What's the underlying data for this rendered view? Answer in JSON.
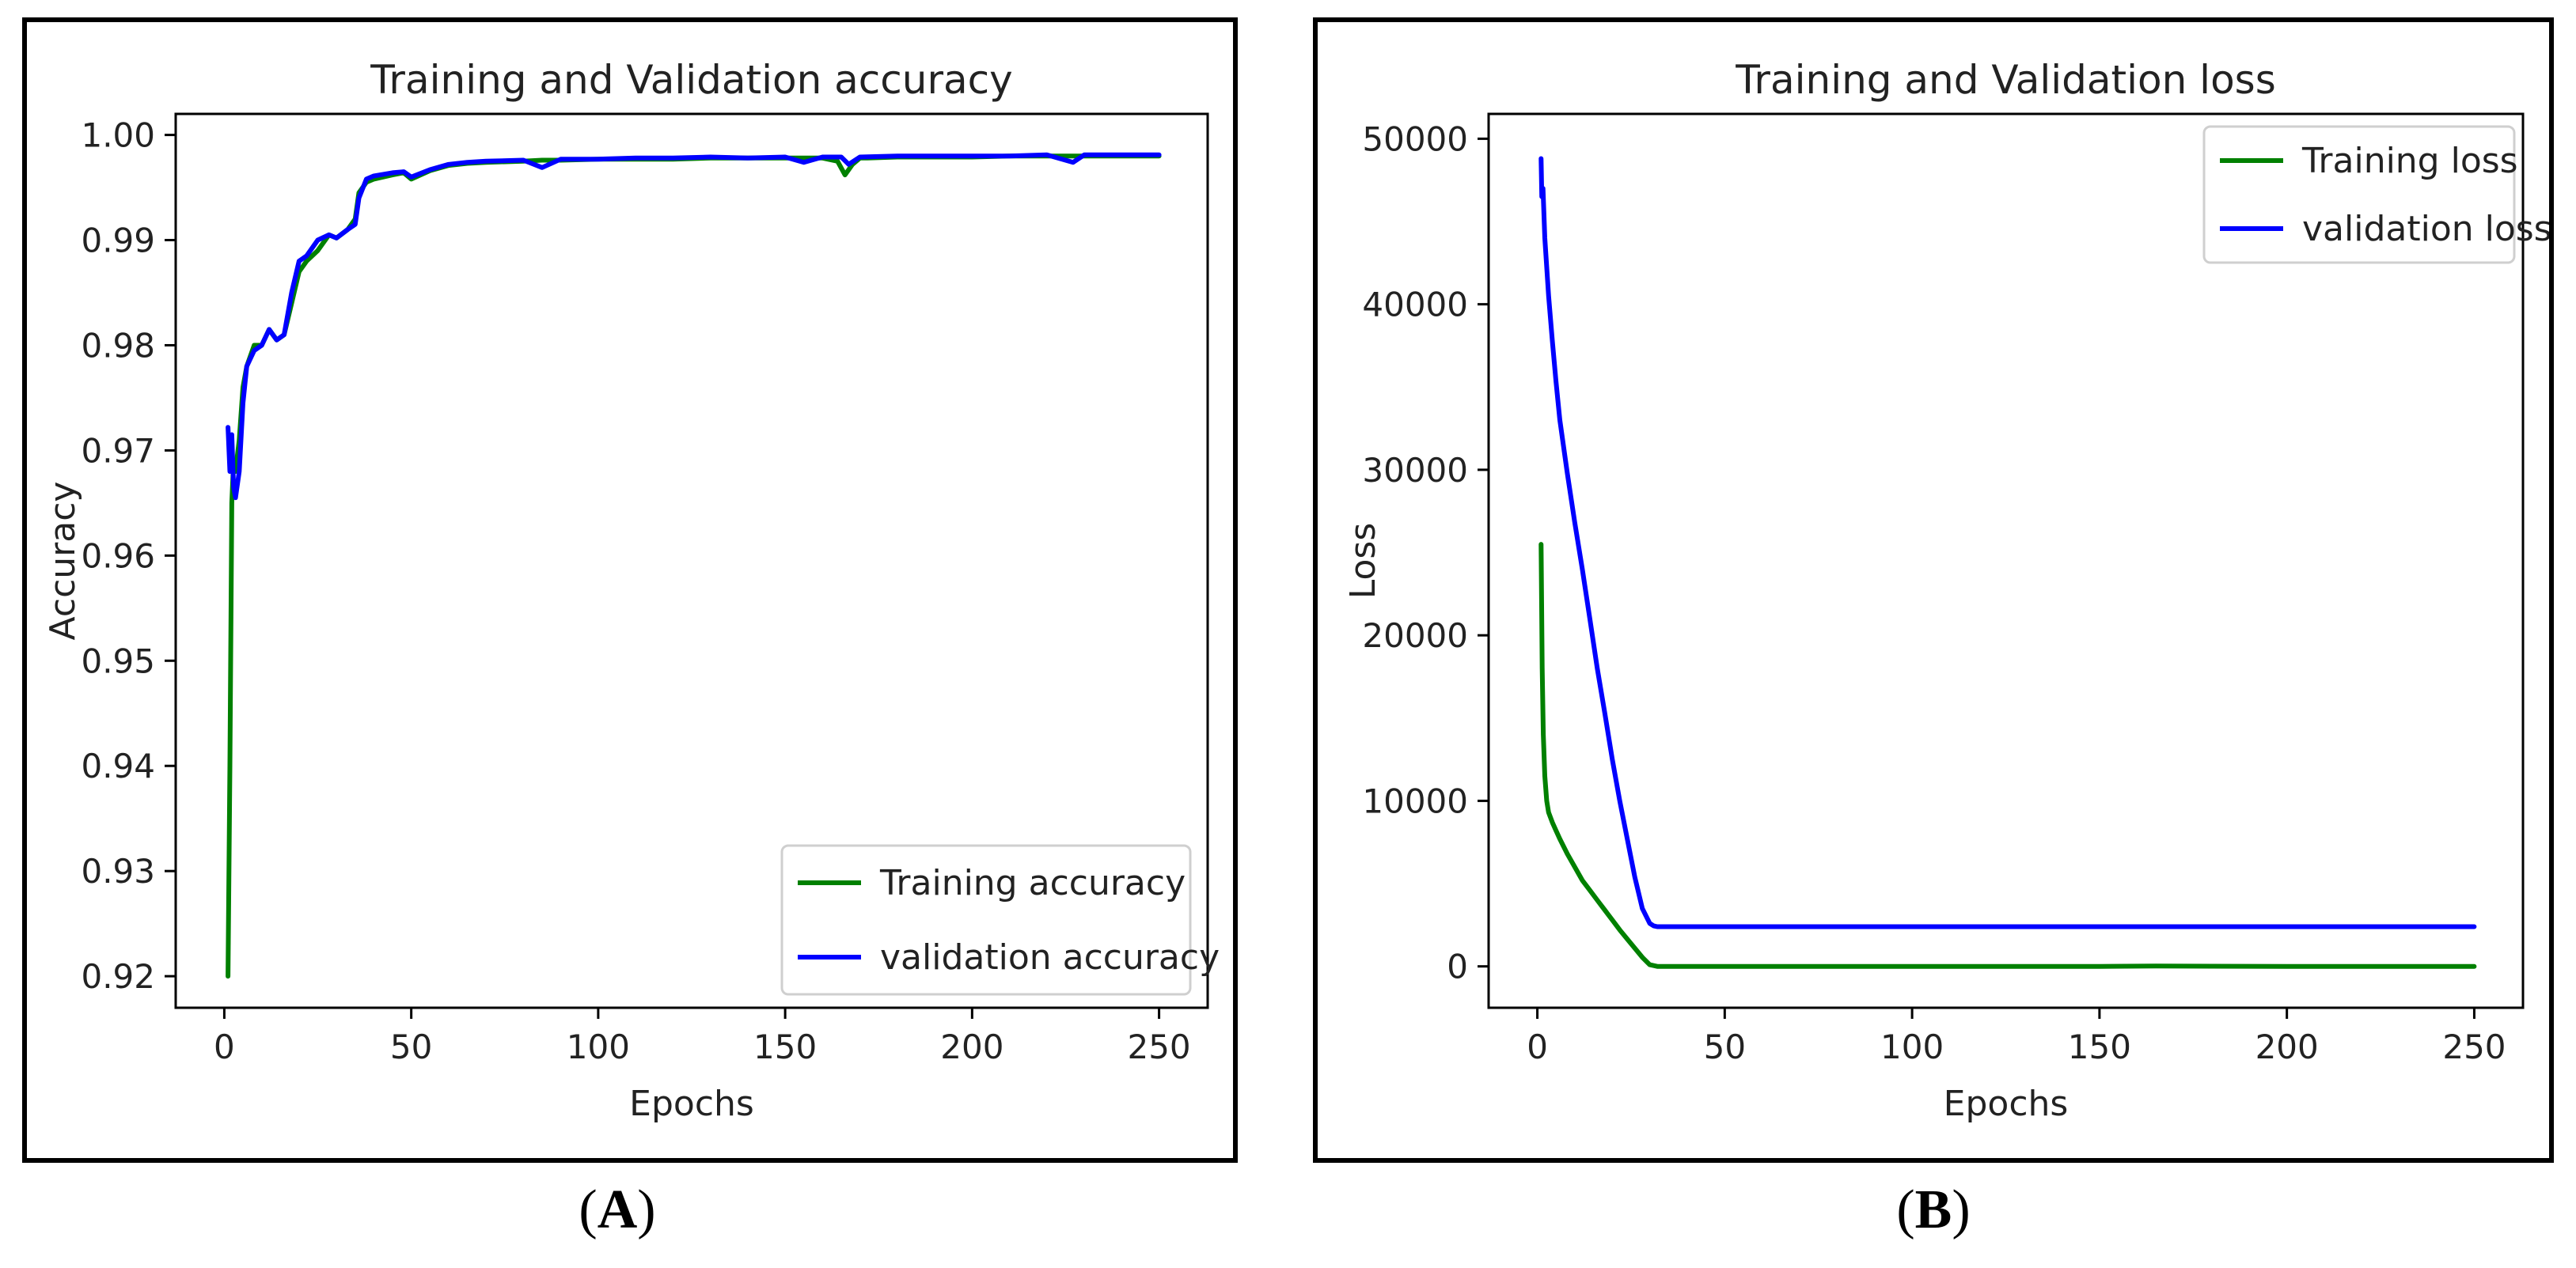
{
  "chart_data": [
    {
      "type": "line",
      "panel_label": "A",
      "title": "Training and Validation accuracy",
      "xlabel": "Epochs",
      "ylabel": "Accuracy",
      "xlim": [
        -13,
        263
      ],
      "ylim": [
        0.917,
        1.002
      ],
      "xticks": [
        0,
        50,
        100,
        150,
        200,
        250
      ],
      "xtick_labels": [
        "0",
        "50",
        "100",
        "150",
        "200",
        "250"
      ],
      "yticks": [
        0.92,
        0.93,
        0.94,
        0.95,
        0.96,
        0.97,
        0.98,
        0.99,
        1.0
      ],
      "ytick_labels": [
        "0.92",
        "0.93",
        "0.94",
        "0.95",
        "0.96",
        "0.97",
        "0.98",
        "0.99",
        "1.00"
      ],
      "legend_position": "lower-right",
      "grid": false,
      "series": [
        {
          "name": "Training accuracy",
          "color": "#008000",
          "x": [
            1,
            1.5,
            2,
            2.5,
            3,
            4,
            5,
            6,
            8,
            10,
            12,
            14,
            16,
            18,
            20,
            22,
            25,
            28,
            30,
            33,
            35,
            36,
            38,
            40,
            45,
            48,
            50,
            55,
            60,
            65,
            70,
            80,
            85,
            90,
            100,
            110,
            120,
            130,
            140,
            150,
            160,
            164,
            166,
            168,
            170,
            172,
            180,
            190,
            200,
            210,
            220,
            230,
            240,
            250
          ],
          "y": [
            0.92,
            0.94,
            0.965,
            0.969,
            0.968,
            0.971,
            0.976,
            0.978,
            0.98,
            0.98,
            0.9815,
            0.9805,
            0.981,
            0.984,
            0.987,
            0.988,
            0.989,
            0.9905,
            0.9902,
            0.991,
            0.992,
            0.9945,
            0.9955,
            0.9958,
            0.9962,
            0.9964,
            0.9958,
            0.9966,
            0.9971,
            0.9973,
            0.9974,
            0.9975,
            0.9976,
            0.9976,
            0.9977,
            0.9977,
            0.9977,
            0.9978,
            0.9978,
            0.9978,
            0.9978,
            0.9975,
            0.9962,
            0.9972,
            0.9978,
            0.9978,
            0.9979,
            0.9979,
            0.9979,
            0.998,
            0.998,
            0.998,
            0.998,
            0.998
          ]
        },
        {
          "name": "validation accuracy",
          "color": "#0000ff",
          "x": [
            1,
            1.5,
            2,
            2.5,
            3,
            4,
            5,
            6,
            8,
            10,
            12,
            14,
            16,
            18,
            20,
            22,
            25,
            28,
            30,
            33,
            35,
            36,
            38,
            40,
            45,
            48,
            50,
            55,
            60,
            65,
            70,
            80,
            85,
            90,
            100,
            110,
            120,
            130,
            140,
            150,
            155,
            160,
            165,
            167,
            170,
            180,
            190,
            200,
            210,
            220,
            227,
            230,
            240,
            250
          ],
          "y": [
            0.9722,
            0.968,
            0.9715,
            0.9665,
            0.9655,
            0.968,
            0.9745,
            0.978,
            0.9795,
            0.98,
            0.9815,
            0.9805,
            0.981,
            0.985,
            0.988,
            0.9885,
            0.99,
            0.9905,
            0.9902,
            0.991,
            0.9915,
            0.994,
            0.9958,
            0.9961,
            0.9964,
            0.9965,
            0.996,
            0.9967,
            0.9972,
            0.9974,
            0.9975,
            0.9976,
            0.9969,
            0.9977,
            0.9977,
            0.9978,
            0.9978,
            0.9979,
            0.9978,
            0.9979,
            0.9974,
            0.9979,
            0.9979,
            0.9972,
            0.9979,
            0.998,
            0.998,
            0.998,
            0.998,
            0.9981,
            0.9974,
            0.9981,
            0.9981,
            0.9981
          ]
        }
      ]
    },
    {
      "type": "line",
      "panel_label": "B",
      "title": "Training and Validation loss",
      "xlabel": "Epochs",
      "ylabel": "Loss",
      "xlim": [
        -13,
        263
      ],
      "ylim": [
        -2500,
        51500
      ],
      "xticks": [
        0,
        50,
        100,
        150,
        200,
        250
      ],
      "xtick_labels": [
        "0",
        "50",
        "100",
        "150",
        "200",
        "250"
      ],
      "yticks": [
        0,
        10000,
        20000,
        30000,
        40000,
        50000
      ],
      "ytick_labels": [
        "0",
        "10000",
        "20000",
        "30000",
        "40000",
        "50000"
      ],
      "legend_position": "top-right",
      "grid": false,
      "series": [
        {
          "name": "Training loss",
          "color": "#008000",
          "x": [
            1,
            1.3,
            1.6,
            2,
            2.5,
            3,
            4,
            5,
            6,
            8,
            10,
            12,
            14,
            16,
            18,
            20,
            22,
            24,
            26,
            28,
            30,
            32,
            40,
            60,
            100,
            150,
            165,
            200,
            250
          ],
          "y": [
            25500,
            18000,
            14000,
            11500,
            10000,
            9300,
            8700,
            8200,
            7700,
            6800,
            6000,
            5200,
            4600,
            4000,
            3400,
            2800,
            2200,
            1650,
            1100,
            550,
            100,
            0,
            0,
            0,
            0,
            0,
            20,
            0,
            0
          ],
          "legend_label": "Training loss"
        },
        {
          "name": "validation loss",
          "color": "#0000ff",
          "x": [
            1,
            1.2,
            1.5,
            2,
            3,
            4,
            5,
            6,
            8,
            10,
            12,
            14,
            16,
            18,
            20,
            22,
            24,
            26,
            28,
            30,
            31,
            32,
            40,
            60,
            100,
            150,
            200,
            250
          ],
          "y": [
            48800,
            46500,
            47000,
            44000,
            40500,
            37800,
            35300,
            33000,
            29800,
            26800,
            24000,
            21000,
            18000,
            15300,
            12500,
            10000,
            7700,
            5400,
            3500,
            2600,
            2450,
            2400,
            2400,
            2400,
            2400,
            2400,
            2400,
            2400
          ]
        }
      ]
    }
  ]
}
